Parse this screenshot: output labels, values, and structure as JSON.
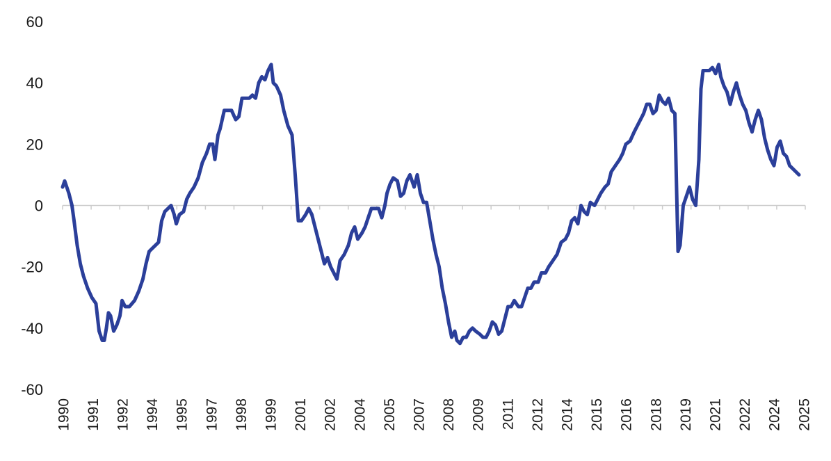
{
  "chart_data": {
    "type": "line",
    "title": "",
    "xlabel": "",
    "ylabel": "",
    "xlim": [
      1990.0,
      2025.6
    ],
    "ylim": [
      -60,
      60
    ],
    "yticks": [
      60,
      40,
      20,
      0,
      -20,
      -40,
      -60
    ],
    "xtick_labels": [
      "1990",
      "1991",
      "1992",
      "1994",
      "1995",
      "1997",
      "1998",
      "1999",
      "2001",
      "2002",
      "2004",
      "2005",
      "2007",
      "2008",
      "2009",
      "2011",
      "2012",
      "2014",
      "2015",
      "2016",
      "2018",
      "2019",
      "2021",
      "2022",
      "2024",
      "2025"
    ],
    "grid": false,
    "zero_line": true,
    "legend": "none",
    "line_color": "#2b3f9a",
    "axis_color": "#cccccc",
    "series": [
      {
        "values": [
          [
            1990.0,
            6
          ],
          [
            1990.1,
            8
          ],
          [
            1990.2,
            6
          ],
          [
            1990.3,
            4
          ],
          [
            1990.45,
            0
          ],
          [
            1990.55,
            -5
          ],
          [
            1990.7,
            -13
          ],
          [
            1990.85,
            -19
          ],
          [
            1991.0,
            -23
          ],
          [
            1991.2,
            -27
          ],
          [
            1991.4,
            -30
          ],
          [
            1991.6,
            -32
          ],
          [
            1991.75,
            -41
          ],
          [
            1991.9,
            -44
          ],
          [
            1992.0,
            -44
          ],
          [
            1992.1,
            -40
          ],
          [
            1992.2,
            -35
          ],
          [
            1992.3,
            -36
          ],
          [
            1992.45,
            -41
          ],
          [
            1992.6,
            -39
          ],
          [
            1992.75,
            -36
          ],
          [
            1992.85,
            -31
          ],
          [
            1993.0,
            -33
          ],
          [
            1993.2,
            -33
          ],
          [
            1993.45,
            -31
          ],
          [
            1993.65,
            -28
          ],
          [
            1993.85,
            -24
          ],
          [
            1994.0,
            -19
          ],
          [
            1994.15,
            -15
          ],
          [
            1994.3,
            -14
          ],
          [
            1994.45,
            -13
          ],
          [
            1994.6,
            -12
          ],
          [
            1994.75,
            -5
          ],
          [
            1994.9,
            -2
          ],
          [
            1995.05,
            -1
          ],
          [
            1995.2,
            0
          ],
          [
            1995.35,
            -3
          ],
          [
            1995.45,
            -6
          ],
          [
            1995.6,
            -3
          ],
          [
            1995.8,
            -2
          ],
          [
            1995.95,
            2
          ],
          [
            1996.1,
            4
          ],
          [
            1996.3,
            6
          ],
          [
            1996.5,
            9
          ],
          [
            1996.7,
            14
          ],
          [
            1996.9,
            17
          ],
          [
            1997.05,
            20
          ],
          [
            1997.2,
            20
          ],
          [
            1997.3,
            15
          ],
          [
            1997.45,
            23
          ],
          [
            1997.55,
            25
          ],
          [
            1997.75,
            31
          ],
          [
            1997.95,
            31
          ],
          [
            1998.1,
            31
          ],
          [
            1998.3,
            28
          ],
          [
            1998.45,
            29
          ],
          [
            1998.6,
            35
          ],
          [
            1998.8,
            35
          ],
          [
            1998.95,
            35
          ],
          [
            1999.1,
            36
          ],
          [
            1999.25,
            35
          ],
          [
            1999.4,
            40
          ],
          [
            1999.55,
            42
          ],
          [
            1999.7,
            41
          ],
          [
            1999.85,
            44
          ],
          [
            2000.0,
            46
          ],
          [
            2000.1,
            40
          ],
          [
            2000.25,
            39
          ],
          [
            2000.45,
            36
          ],
          [
            2000.6,
            31
          ],
          [
            2000.8,
            26
          ],
          [
            2001.0,
            23
          ],
          [
            2001.15,
            10
          ],
          [
            2001.3,
            -5
          ],
          [
            2001.45,
            -5
          ],
          [
            2001.65,
            -3
          ],
          [
            2001.8,
            -1
          ],
          [
            2001.95,
            -3
          ],
          [
            2002.1,
            -7
          ],
          [
            2002.25,
            -11
          ],
          [
            2002.4,
            -15
          ],
          [
            2002.55,
            -19
          ],
          [
            2002.7,
            -17
          ],
          [
            2002.85,
            -20
          ],
          [
            2003.0,
            -22
          ],
          [
            2003.15,
            -24
          ],
          [
            2003.3,
            -18
          ],
          [
            2003.5,
            -16
          ],
          [
            2003.7,
            -13
          ],
          [
            2003.85,
            -9
          ],
          [
            2004.0,
            -7
          ],
          [
            2004.15,
            -11
          ],
          [
            2004.35,
            -9
          ],
          [
            2004.5,
            -7
          ],
          [
            2004.65,
            -4
          ],
          [
            2004.8,
            -1
          ],
          [
            2005.0,
            -1
          ],
          [
            2005.15,
            -1
          ],
          [
            2005.3,
            -4
          ],
          [
            2005.45,
            0
          ],
          [
            2005.55,
            4
          ],
          [
            2005.7,
            7
          ],
          [
            2005.85,
            9
          ],
          [
            2006.05,
            8
          ],
          [
            2006.2,
            3
          ],
          [
            2006.35,
            4
          ],
          [
            2006.5,
            8
          ],
          [
            2006.65,
            10
          ],
          [
            2006.85,
            6
          ],
          [
            2007.0,
            10
          ],
          [
            2007.15,
            4
          ],
          [
            2007.3,
            1
          ],
          [
            2007.45,
            1
          ],
          [
            2007.6,
            -5
          ],
          [
            2007.75,
            -11
          ],
          [
            2007.9,
            -16
          ],
          [
            2008.05,
            -20
          ],
          [
            2008.2,
            -27
          ],
          [
            2008.35,
            -32
          ],
          [
            2008.5,
            -38
          ],
          [
            2008.65,
            -43
          ],
          [
            2008.8,
            -41
          ],
          [
            2008.9,
            -44
          ],
          [
            2009.05,
            -45
          ],
          [
            2009.2,
            -43
          ],
          [
            2009.35,
            -43
          ],
          [
            2009.5,
            -41
          ],
          [
            2009.65,
            -40
          ],
          [
            2009.8,
            -41
          ],
          [
            2010.0,
            -42
          ],
          [
            2010.15,
            -43
          ],
          [
            2010.3,
            -43
          ],
          [
            2010.45,
            -41
          ],
          [
            2010.6,
            -38
          ],
          [
            2010.75,
            -39
          ],
          [
            2010.9,
            -42
          ],
          [
            2011.05,
            -41
          ],
          [
            2011.2,
            -37
          ],
          [
            2011.35,
            -33
          ],
          [
            2011.5,
            -33
          ],
          [
            2011.65,
            -31
          ],
          [
            2011.85,
            -33
          ],
          [
            2012.0,
            -33
          ],
          [
            2012.15,
            -30
          ],
          [
            2012.3,
            -27
          ],
          [
            2012.45,
            -27
          ],
          [
            2012.6,
            -25
          ],
          [
            2012.8,
            -25
          ],
          [
            2012.95,
            -22
          ],
          [
            2013.15,
            -22
          ],
          [
            2013.3,
            -20
          ],
          [
            2013.5,
            -18
          ],
          [
            2013.7,
            -16
          ],
          [
            2013.9,
            -12
          ],
          [
            2014.1,
            -11
          ],
          [
            2014.25,
            -9
          ],
          [
            2014.4,
            -5
          ],
          [
            2014.55,
            -4
          ],
          [
            2014.7,
            -6
          ],
          [
            2014.85,
            0
          ],
          [
            2015.0,
            -2
          ],
          [
            2015.15,
            -3
          ],
          [
            2015.3,
            1
          ],
          [
            2015.5,
            0
          ],
          [
            2015.65,
            2
          ],
          [
            2015.8,
            4
          ],
          [
            2016.0,
            6
          ],
          [
            2016.15,
            7
          ],
          [
            2016.3,
            11
          ],
          [
            2016.5,
            13
          ],
          [
            2016.7,
            15
          ],
          [
            2016.85,
            17
          ],
          [
            2017.0,
            20
          ],
          [
            2017.2,
            21
          ],
          [
            2017.4,
            24
          ],
          [
            2017.55,
            26
          ],
          [
            2017.7,
            28
          ],
          [
            2017.85,
            30
          ],
          [
            2018.0,
            33
          ],
          [
            2018.15,
            33
          ],
          [
            2018.3,
            30
          ],
          [
            2018.45,
            31
          ],
          [
            2018.6,
            36
          ],
          [
            2018.75,
            34
          ],
          [
            2018.9,
            33
          ],
          [
            2019.05,
            35
          ],
          [
            2019.2,
            31
          ],
          [
            2019.35,
            30
          ],
          [
            2019.5,
            -15
          ],
          [
            2019.6,
            -13
          ],
          [
            2019.75,
            0
          ],
          [
            2019.9,
            3
          ],
          [
            2020.05,
            6
          ],
          [
            2020.2,
            2
          ],
          [
            2020.35,
            0
          ],
          [
            2020.5,
            15
          ],
          [
            2020.6,
            38
          ],
          [
            2020.7,
            44
          ],
          [
            2020.85,
            44
          ],
          [
            2021.0,
            44
          ],
          [
            2021.15,
            45
          ],
          [
            2021.3,
            43
          ],
          [
            2021.45,
            46
          ],
          [
            2021.55,
            42
          ],
          [
            2021.7,
            39
          ],
          [
            2021.85,
            37
          ],
          [
            2022.0,
            33
          ],
          [
            2022.15,
            37
          ],
          [
            2022.3,
            40
          ],
          [
            2022.45,
            36
          ],
          [
            2022.6,
            33
          ],
          [
            2022.75,
            31
          ],
          [
            2022.9,
            27
          ],
          [
            2023.05,
            24
          ],
          [
            2023.2,
            28
          ],
          [
            2023.35,
            31
          ],
          [
            2023.5,
            28
          ],
          [
            2023.65,
            22
          ],
          [
            2023.8,
            18
          ],
          [
            2023.95,
            15
          ],
          [
            2024.1,
            13
          ],
          [
            2024.25,
            19
          ],
          [
            2024.4,
            21
          ],
          [
            2024.55,
            17
          ],
          [
            2024.7,
            16
          ],
          [
            2024.85,
            13
          ],
          [
            2025.0,
            12
          ],
          [
            2025.15,
            11
          ],
          [
            2025.3,
            10
          ]
        ]
      }
    ]
  }
}
